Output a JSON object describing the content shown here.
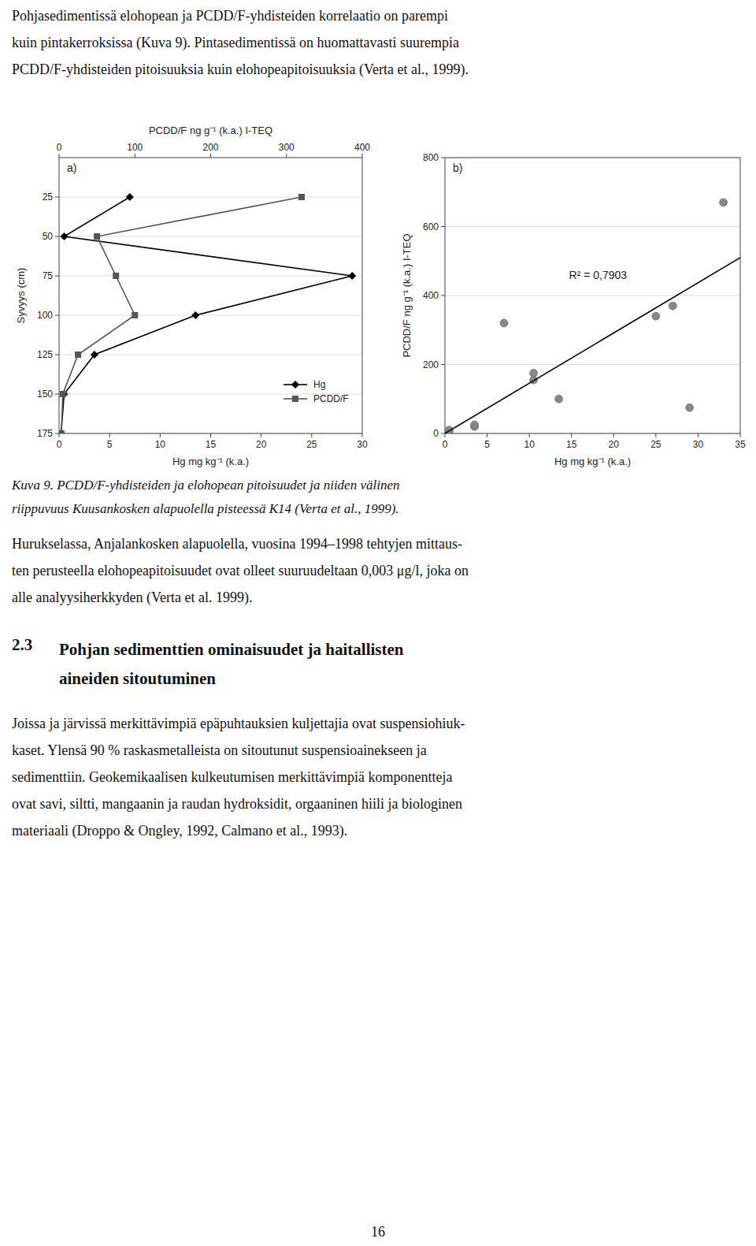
{
  "chart_data": [
    {
      "type": "line",
      "title": "a)",
      "xlabel": "Hg mg kg⁻¹ (k.a.)",
      "ylabel": "Syvyys (cm)",
      "x2label": "PCDD/F ng g⁻¹ (k.a.)  I-TEQ",
      "xlim": [
        0,
        30
      ],
      "xticks": [
        0,
        5,
        10,
        15,
        20,
        25,
        30
      ],
      "x2lim": [
        0,
        400
      ],
      "x2ticks": [
        0,
        100,
        200,
        300,
        400
      ],
      "ylim": [
        175,
        0
      ],
      "yticks": [
        25,
        50,
        75,
        100,
        125,
        150,
        175
      ],
      "grid": "y",
      "legend": "lower right",
      "series": [
        {
          "name": "Hg",
          "color": "#000000",
          "marker": "diamond",
          "line_style": "solid",
          "x": [
            7.0,
            0.5,
            29.0,
            13.5,
            3.5,
            0.5,
            0.2
          ],
          "y": [
            25,
            50,
            75,
            100,
            125,
            150,
            175
          ]
        },
        {
          "name": "PCDD/F",
          "color": "#555555",
          "marker": "square",
          "line_style": "solid",
          "axis": "x2",
          "x": [
            320,
            50,
            75,
            100,
            25,
            5,
            3
          ],
          "y": [
            25,
            50,
            75,
            100,
            125,
            150,
            175
          ]
        }
      ]
    },
    {
      "type": "scatter",
      "title": "b)",
      "annotations": [
        "R² = 0,7903"
      ],
      "xlabel": "Hg mg kg⁻¹ (k.a.)",
      "ylabel": "PCDD/F ng g⁻¹ (k.a.)  I-TEQ",
      "xlim": [
        0,
        35
      ],
      "xticks": [
        0,
        5,
        10,
        15,
        20,
        25,
        30,
        35
      ],
      "ylim": [
        0,
        800
      ],
      "yticks": [
        0,
        200,
        400,
        600,
        800
      ],
      "grid": "y",
      "series": [
        {
          "type": "scatter",
          "color": "#888888",
          "marker": "circle",
          "x": [
            0.2,
            0.5,
            0.5,
            3.5,
            3.5,
            7.0,
            10.5,
            10.5,
            13.5,
            25.0,
            27.0,
            29.0,
            33.0
          ],
          "y": [
            3,
            5,
            10,
            20,
            25,
            320,
            175,
            155,
            100,
            340,
            370,
            75,
            670
          ]
        },
        {
          "type": "line",
          "color": "#000000",
          "line_style": "solid",
          "x": [
            0,
            35
          ],
          "y": [
            0,
            510
          ]
        }
      ]
    }
  ],
  "page": {
    "paragraph_top": [
      "Pohjasedimentissä elohopean ja PCDD/F-yhdisteiden korrelaatio on parempi",
      "kuin pintakerroksissa (Kuva 9). Pintasedimentissä on huomattavasti suurempia",
      "PCDD/F-yhdisteiden pitoisuuksia kuin elohopeapitoisuuksia (Verta et al., 1999)."
    ],
    "caption": [
      "Kuva 9.  PCDD/F-yhdisteiden ja elohopean pitoisuudet ja niiden välinen",
      "riippuvuus Kuusankosken alapuolella pisteessä K14 (Verta et al., 1999)."
    ],
    "paragraph_mid": [
      "Hurukselassa, Anjalankosken alapuolella, vuosina 1994–1998 tehtyjen mittaus-",
      "ten perusteella elohopeapitoisuudet ovat olleet suuruudeltaan 0,003 μg/l, joka on",
      "alle analyysiherkkyden (Verta et al. 1999)."
    ],
    "heading_number": "2.3",
    "heading_lines": [
      "Pohjan sedimenttien ominaisuudet ja haitallisten",
      "aineiden sitoutuminen"
    ],
    "paragraph_bottom": [
      "Joissa ja järvissä merkittävimpiä epäpuhtauksien kuljettajia ovat suspensiohiuk-",
      "kaset. Ylensä 90 % raskasmetalleista on sitoutunut suspensioainekseen ja",
      "sedimenttiin.  Geokemikaalisen kulkeutumisen merkittävimpiä komponentteja",
      "ovat savi, siltti, mangaanin ja raudan hydroksidit, orgaaninen hiili ja biologinen",
      "materiaali (Droppo & Ongley, 1992, Calmano et al., 1993)."
    ],
    "page_number": "16"
  }
}
